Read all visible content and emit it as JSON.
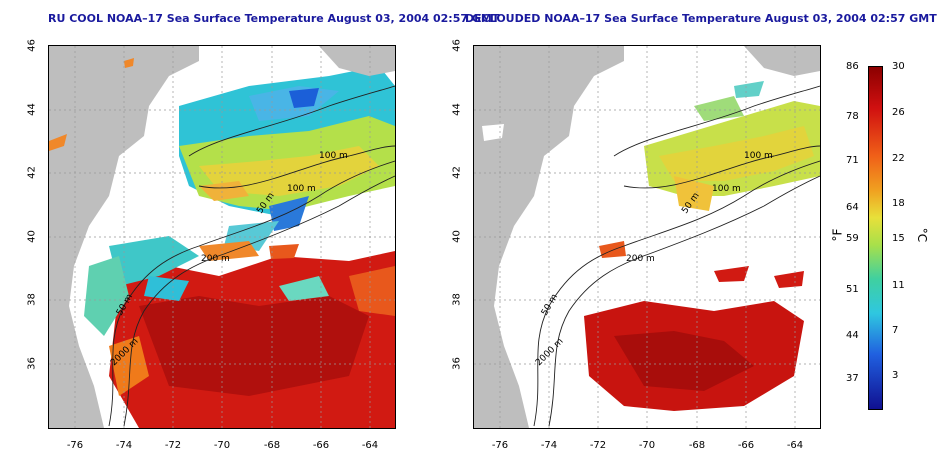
{
  "titles": {
    "left": "RU COOL NOAA–17 Sea Surface Temperature August 03, 2004 02:57 GMT",
    "right": "DECLOUDED NOAA–17 Sea Surface Temperature August 03, 2004 02:57 GMT"
  },
  "axes": {
    "lat_ticks": [
      "46",
      "44",
      "42",
      "40",
      "38",
      "36"
    ],
    "lon_ticks": [
      "-76",
      "-74",
      "-72",
      "-70",
      "-68",
      "-66",
      "-64"
    ]
  },
  "contours": {
    "left": [
      "100 m",
      "100 m",
      "50 m",
      "200 m",
      "50 m",
      "2000 m"
    ],
    "right": [
      "100 m",
      "100 m",
      "50 m",
      "200 m",
      "50 m",
      "2000 m"
    ]
  },
  "colorbar": {
    "fahrenheit": [
      "86",
      "78",
      "71",
      "64",
      "59",
      "51",
      "44",
      "37"
    ],
    "celsius": [
      "30",
      "26",
      "22",
      "18",
      "15",
      "11",
      "7",
      "3"
    ],
    "unit_f": "°F",
    "unit_c": "°C"
  },
  "colors": {
    "land": "#bebebe",
    "cloud": "#ffffff",
    "warm": "#c8140f",
    "mid": "#e6d23c",
    "cool": "#2fbfd8",
    "title": "#1a1a9e"
  }
}
